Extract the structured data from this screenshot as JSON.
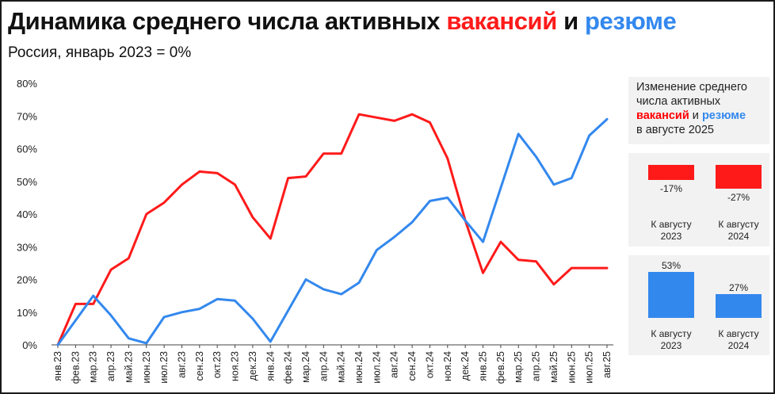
{
  "header": {
    "title_prefix": "Динамика среднего числа активных ",
    "title_vacancies": "вакансий",
    "title_and": " и ",
    "title_resumes": "резюме",
    "subtitle": "Россия, январь 2023 = 0%"
  },
  "colors": {
    "vacancies": "#ff1a1a",
    "resumes": "#3388ee",
    "grid": "#d9d9d9",
    "panel": "#f2f2f2"
  },
  "chart_data": {
    "type": "line",
    "title": "Динамика среднего числа активных вакансий и резюме",
    "subtitle": "Россия, январь 2023 = 0%",
    "xlabel": "",
    "ylabel": "",
    "ylim": [
      0,
      80
    ],
    "yticks": [
      0,
      10,
      20,
      30,
      40,
      50,
      60,
      70,
      80
    ],
    "ytick_labels": [
      "0%",
      "10%",
      "20%",
      "30%",
      "40%",
      "50%",
      "60%",
      "70%",
      "80%"
    ],
    "grid": false,
    "categories": [
      "янв.23",
      "фев.23",
      "мар.23",
      "апр.23",
      "май.23",
      "июн.23",
      "июл.23",
      "авг.23",
      "сен.23",
      "окт.23",
      "ноя.23",
      "дек.23",
      "янв.24",
      "фев.24",
      "мар.24",
      "апр.24",
      "май.24",
      "июн.24",
      "июл.24",
      "авг.24",
      "сен.24",
      "окт.24",
      "ноя.24",
      "дек.24",
      "янв.25",
      "фев.25",
      "мар.25",
      "апр.25",
      "май.25",
      "июн.25",
      "июл.25",
      "авг.25"
    ],
    "series": [
      {
        "name": "вакансий",
        "color": "#ff1a1a",
        "values": [
          0,
          12.5,
          12.5,
          23,
          26.5,
          40,
          43.5,
          49,
          53,
          52.5,
          49,
          39,
          32.5,
          51,
          51.5,
          58.5,
          58.5,
          70.5,
          69.5,
          68.5,
          70.5,
          68,
          57,
          38,
          22,
          31.5,
          26,
          25.5,
          18.5,
          23.5,
          23.5,
          23.5
        ]
      },
      {
        "name": "резюме",
        "color": "#3388ee",
        "values": [
          0,
          7.5,
          15,
          9,
          2,
          0.5,
          8.5,
          10,
          11,
          14,
          13.5,
          8,
          1,
          10.5,
          20,
          17,
          15.5,
          19,
          29,
          33,
          37.5,
          44,
          45,
          38,
          31.5,
          48,
          64.5,
          57.5,
          49,
          51,
          64,
          69
        ]
      }
    ]
  },
  "side": {
    "caption_prefix": "Изменение среднего числа активных",
    "caption_vacancies": "вакансий",
    "caption_and": " и ",
    "caption_resumes": "резюме",
    "caption_suffix": "в августе 2025",
    "vacancies": [
      {
        "label": "К августу 2023",
        "value": -17,
        "value_text": "-17%"
      },
      {
        "label": "К августу 2024",
        "value": -27,
        "value_text": "-27%"
      }
    ],
    "resumes": [
      {
        "label": "К августу 2023",
        "value": 53,
        "value_text": "53%"
      },
      {
        "label": "К августу 2024",
        "value": 27,
        "value_text": "27%"
      }
    ]
  }
}
